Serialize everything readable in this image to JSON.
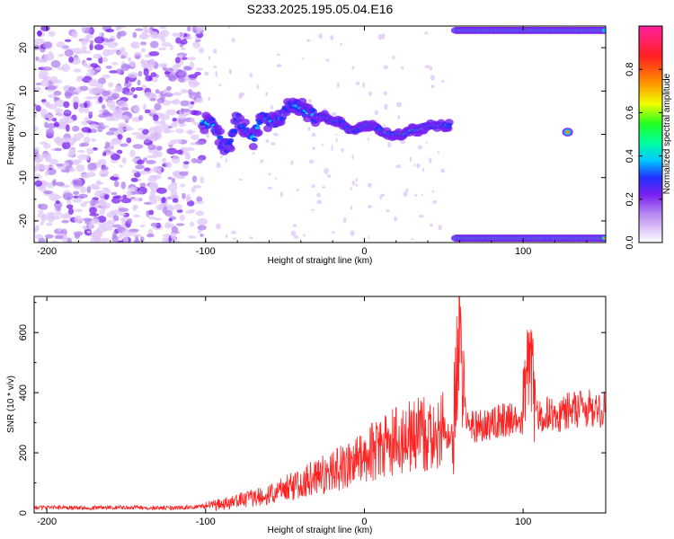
{
  "figure": {
    "title": "S233.2025.195.05.04.E16"
  },
  "chart_data": [
    {
      "type": "heatmap",
      "xlabel": "Height of straight line (km)",
      "ylabel": "Frequency (Hz)",
      "xlim": [
        -208,
        152
      ],
      "ylim": [
        -25,
        25
      ],
      "xticks": [
        -200,
        -100,
        0,
        100
      ],
      "yticks": [
        -20,
        -10,
        0,
        10,
        20
      ],
      "colorbar": {
        "label": "Normalized spectral amplitude",
        "range": [
          0,
          1
        ],
        "ticks": [
          "0.0",
          "0.2",
          "0.4",
          "0.6",
          "0.8"
        ],
        "tick_values": [
          0.0,
          0.2,
          0.4,
          0.6,
          0.8
        ],
        "colormap": [
          "#ffffff",
          "#e0c8f8",
          "#b080f0",
          "#7a20f0",
          "#2030ff",
          "#00c8ff",
          "#00ffa0",
          "#20ff20",
          "#f0ff00",
          "#ff9000",
          "#ff2020",
          "#ff20a0"
        ]
      },
      "features": [
        {
          "name": "noise",
          "x_range": [
            -208,
            -102
          ],
          "y_range": [
            -25,
            25
          ],
          "amplitude": 0.1
        },
        {
          "name": "ridge",
          "points": [
            [
              -102,
              3
            ],
            [
              -95,
              2
            ],
            [
              -90,
              -2
            ],
            [
              -85,
              -3
            ],
            [
              -80,
              4
            ],
            [
              -75,
              1
            ],
            [
              -70,
              -1
            ],
            [
              -65,
              4
            ],
            [
              -60,
              3
            ],
            [
              -55,
              3
            ],
            [
              -50,
              5
            ],
            [
              -45,
              7
            ],
            [
              -40,
              6
            ],
            [
              -35,
              5
            ],
            [
              -30,
              4
            ],
            [
              -25,
              4
            ],
            [
              -20,
              3
            ],
            [
              -15,
              3
            ],
            [
              -10,
              1
            ],
            [
              -5,
              1
            ],
            [
              0,
              2
            ],
            [
              5,
              2
            ],
            [
              10,
              1
            ],
            [
              15,
              0
            ],
            [
              20,
              0
            ],
            [
              25,
              0
            ],
            [
              30,
              1
            ],
            [
              35,
              1
            ],
            [
              40,
              2
            ],
            [
              45,
              2
            ],
            [
              50,
              2
            ],
            [
              54,
              2
            ]
          ]
        },
        {
          "name": "band-top",
          "x_range": [
            58,
            152
          ],
          "y": 24
        },
        {
          "name": "band-bottom",
          "x_range": [
            58,
            152
          ],
          "y": -24
        },
        {
          "name": "spot",
          "x": 128,
          "y": 0.5
        }
      ]
    },
    {
      "type": "line",
      "xlabel": "Height of straight line (km)",
      "ylabel": "SNR (10 * v/v)",
      "xlim": [
        -208,
        152
      ],
      "ylim": [
        0,
        720
      ],
      "xticks": [
        -200,
        -100,
        0,
        100
      ],
      "yticks": [
        0,
        200,
        400,
        600
      ],
      "color": "#ff2020",
      "series": [
        {
          "x": [
            -208,
            -180,
            -150,
            -120,
            -100,
            -90,
            -80,
            -70,
            -60,
            -50,
            -40,
            -30,
            -20,
            -10,
            0,
            10,
            20,
            30,
            40,
            50,
            55,
            58,
            60,
            62,
            65,
            70,
            80,
            90,
            100,
            102,
            104,
            106,
            108,
            110,
            120,
            130,
            140,
            152
          ],
          "values": [
            18,
            17,
            18,
            17,
            22,
            30,
            40,
            50,
            60,
            80,
            100,
            120,
            140,
            160,
            190,
            215,
            240,
            255,
            265,
            275,
            250,
            450,
            650,
            420,
            280,
            290,
            300,
            310,
            320,
            450,
            500,
            420,
            320,
            320,
            330,
            340,
            345,
            350
          ]
        }
      ]
    }
  ]
}
